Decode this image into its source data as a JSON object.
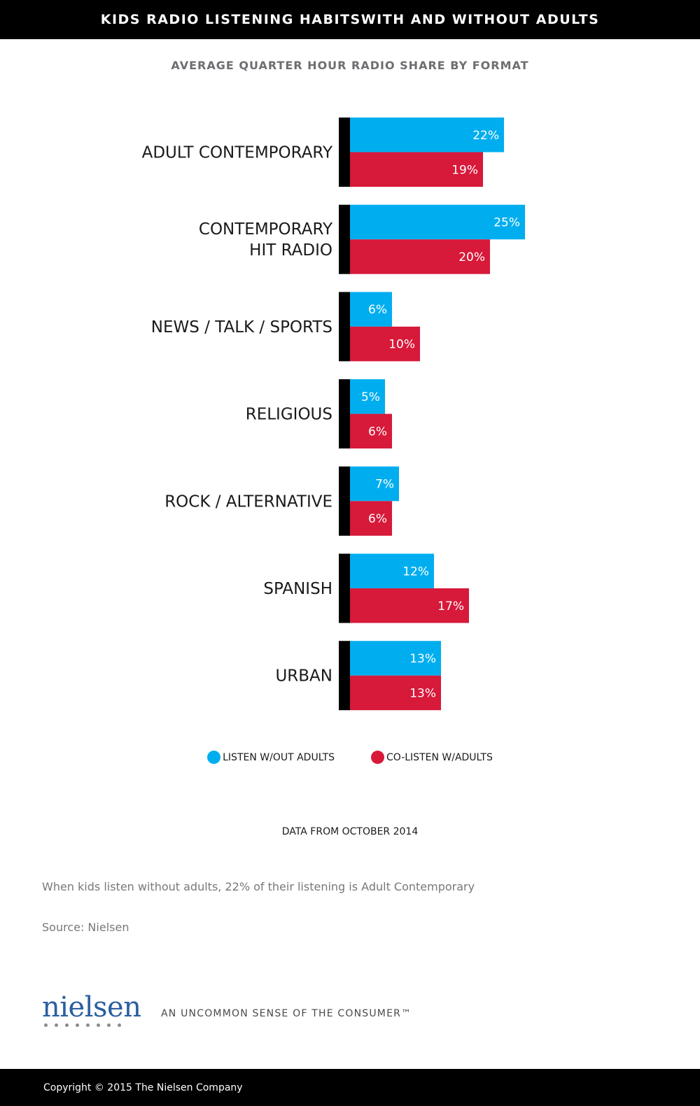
{
  "header": {
    "title": "KIDS RADIO LISTENING HABITSWITH AND WITHOUT ADULTS",
    "subtitle": "AVERAGE QUARTER HOUR RADIO SHARE BY FORMAT"
  },
  "colors": {
    "listen_without_adults": "#00aeef",
    "co_listen_with_adults": "#d7193a",
    "axis_bar": "#000000"
  },
  "chart_data": {
    "type": "bar",
    "orientation": "horizontal",
    "categories": [
      [
        "ADULT CONTEMPORARY"
      ],
      [
        "CONTEMPORARY",
        "HIT RADIO"
      ],
      [
        "NEWS / TALK / SPORTS"
      ],
      [
        "RELIGIOUS"
      ],
      [
        "ROCK / ALTERNATIVE"
      ],
      [
        "SPANISH"
      ],
      [
        "URBAN"
      ]
    ],
    "series": [
      {
        "name": "LISTEN W/OUT ADULTS",
        "values": [
          22,
          25,
          6,
          5,
          7,
          12,
          13
        ],
        "labels": [
          "22%",
          "25%",
          "6%",
          "5%",
          "7%",
          "12%",
          "13%"
        ]
      },
      {
        "name": "CO-LISTEN W/ADULTS",
        "values": [
          19,
          20,
          10,
          6,
          6,
          17,
          13
        ],
        "labels": [
          "19%",
          "20%",
          "10%",
          "6%",
          "6%",
          "17%",
          "13%"
        ]
      }
    ],
    "unit": "%",
    "grid": false,
    "legend_placement": "bottom"
  },
  "legend": {
    "item1": "LISTEN W/OUT ADULTS",
    "item2": "CO-LISTEN W/ADULTS"
  },
  "notes": {
    "data_note": "DATA FROM OCTOBER 2014",
    "caption": "When kids listen without adults, 22% of their listening is Adult Contemporary",
    "source": "Source: Nielsen"
  },
  "branding": {
    "logo": "nielsen",
    "tagline": "AN UNCOMMON SENSE OF THE CONSUMER™"
  },
  "footer": {
    "copyright": "Copyright © 2015 The Nielsen Company"
  }
}
